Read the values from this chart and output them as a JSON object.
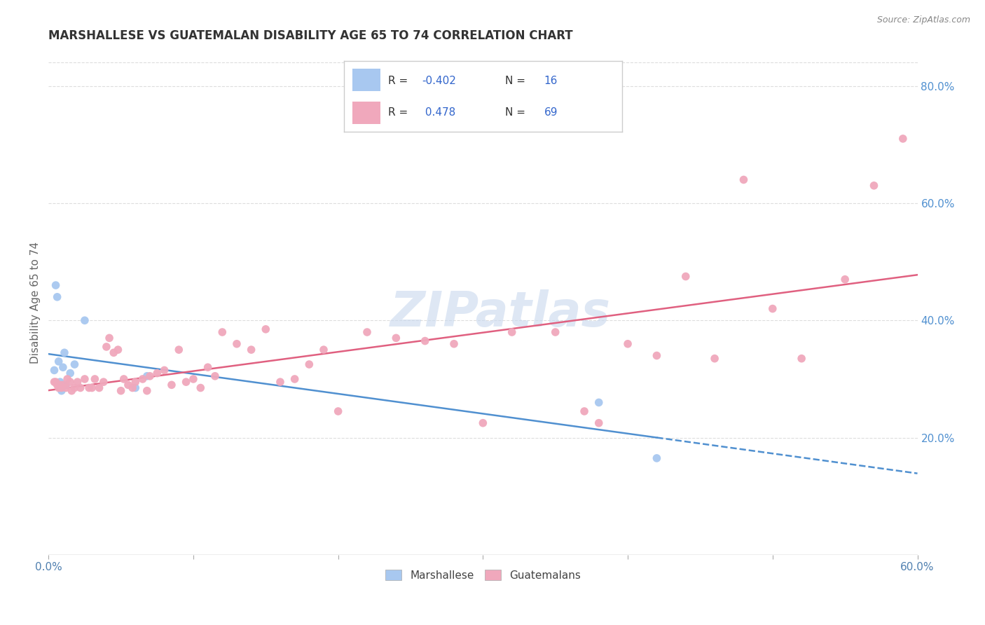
{
  "title": "MARSHALLESE VS GUATEMALAN DISABILITY AGE 65 TO 74 CORRELATION CHART",
  "source": "Source: ZipAtlas.com",
  "ylabel": "Disability Age 65 to 74",
  "legend_label1": "Marshallese",
  "legend_label2": "Guatemalans",
  "R1": -0.402,
  "N1": 16,
  "R2": 0.478,
  "N2": 69,
  "color_marshallese": "#a8c8f0",
  "color_guatemalans": "#f0a8bc",
  "color_line1": "#5090d0",
  "color_line2": "#e06080",
  "watermark": "ZIPatlas",
  "xlim": [
    0.0,
    0.6
  ],
  "ylim": [
    0.0,
    0.86
  ],
  "xtick_show": [
    0.0,
    0.6
  ],
  "xtick_minor": [
    0.1,
    0.2,
    0.3,
    0.4,
    0.5
  ],
  "yticks_right": [
    0.2,
    0.4,
    0.6,
    0.8
  ],
  "marshallese_x": [
    0.004,
    0.005,
    0.006,
    0.007,
    0.008,
    0.009,
    0.01,
    0.011,
    0.012,
    0.015,
    0.018,
    0.025,
    0.06,
    0.068,
    0.38,
    0.42
  ],
  "marshallese_y": [
    0.315,
    0.46,
    0.44,
    0.33,
    0.295,
    0.28,
    0.32,
    0.345,
    0.29,
    0.31,
    0.325,
    0.4,
    0.285,
    0.305,
    0.26,
    0.165
  ],
  "guatemalans_x": [
    0.004,
    0.005,
    0.006,
    0.007,
    0.008,
    0.009,
    0.01,
    0.012,
    0.013,
    0.015,
    0.016,
    0.018,
    0.02,
    0.022,
    0.025,
    0.028,
    0.03,
    0.032,
    0.035,
    0.038,
    0.04,
    0.042,
    0.045,
    0.048,
    0.05,
    0.052,
    0.055,
    0.058,
    0.06,
    0.065,
    0.068,
    0.07,
    0.075,
    0.08,
    0.085,
    0.09,
    0.095,
    0.1,
    0.105,
    0.11,
    0.115,
    0.12,
    0.13,
    0.14,
    0.15,
    0.16,
    0.17,
    0.18,
    0.19,
    0.2,
    0.22,
    0.24,
    0.26,
    0.28,
    0.3,
    0.32,
    0.35,
    0.37,
    0.38,
    0.4,
    0.42,
    0.44,
    0.46,
    0.48,
    0.5,
    0.52,
    0.55,
    0.57,
    0.59
  ],
  "guatemalans_y": [
    0.295,
    0.295,
    0.29,
    0.285,
    0.29,
    0.285,
    0.29,
    0.285,
    0.3,
    0.295,
    0.28,
    0.285,
    0.295,
    0.285,
    0.3,
    0.285,
    0.285,
    0.3,
    0.285,
    0.295,
    0.355,
    0.37,
    0.345,
    0.35,
    0.28,
    0.3,
    0.29,
    0.285,
    0.295,
    0.3,
    0.28,
    0.305,
    0.31,
    0.315,
    0.29,
    0.35,
    0.295,
    0.3,
    0.285,
    0.32,
    0.305,
    0.38,
    0.36,
    0.35,
    0.385,
    0.295,
    0.3,
    0.325,
    0.35,
    0.245,
    0.38,
    0.37,
    0.365,
    0.36,
    0.225,
    0.38,
    0.38,
    0.245,
    0.225,
    0.36,
    0.34,
    0.475,
    0.335,
    0.64,
    0.42,
    0.335,
    0.47,
    0.63,
    0.71
  ]
}
